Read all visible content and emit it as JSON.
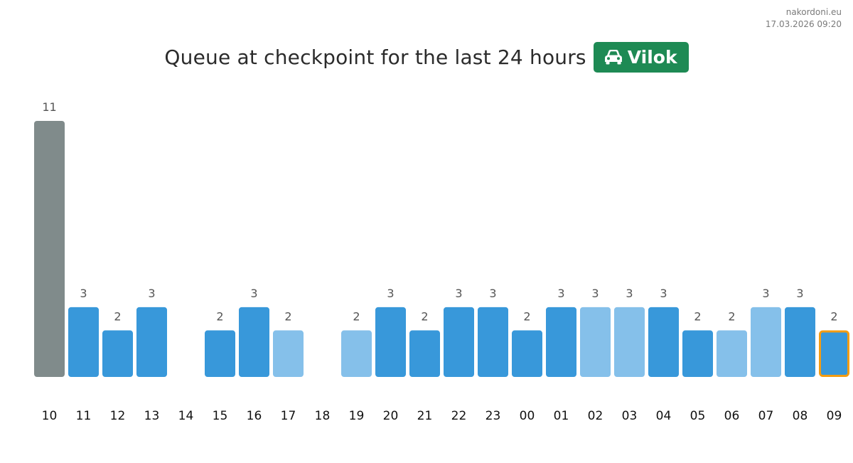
{
  "header": {
    "site": "nakordoni.eu",
    "timestamp": "17.03.2026 09:20"
  },
  "badge": {
    "label": "Vilok",
    "icon": "car-icon",
    "color": "#1e8a54"
  },
  "chart_data": {
    "type": "bar",
    "title": "Queue at checkpoint for the last 24 hours",
    "categories": [
      "10",
      "11",
      "12",
      "13",
      "14",
      "15",
      "16",
      "17",
      "18",
      "19",
      "20",
      "21",
      "22",
      "23",
      "00",
      "01",
      "02",
      "03",
      "04",
      "05",
      "06",
      "07",
      "08",
      "09"
    ],
    "values": [
      11,
      3,
      2,
      3,
      0,
      2,
      3,
      2,
      0,
      2,
      3,
      2,
      3,
      3,
      2,
      3,
      3,
      3,
      3,
      2,
      2,
      3,
      3,
      2
    ],
    "bar_colors": [
      "#808b8b",
      "#3898da",
      "#3898da",
      "#3898da",
      "#3898da",
      "#3898da",
      "#3898da",
      "#85c0ea",
      "#3898da",
      "#85c0ea",
      "#3898da",
      "#3898da",
      "#3898da",
      "#3898da",
      "#3898da",
      "#3898da",
      "#85c0ea",
      "#85c0ea",
      "#3898da",
      "#3898da",
      "#85c0ea",
      "#85c0ea",
      "#3898da",
      "#3898da"
    ],
    "highlight_index": 23,
    "highlight_color": "#f39c12",
    "ylim": [
      0,
      11
    ],
    "grid": false,
    "legend": "none",
    "xlabel": "",
    "ylabel": ""
  }
}
